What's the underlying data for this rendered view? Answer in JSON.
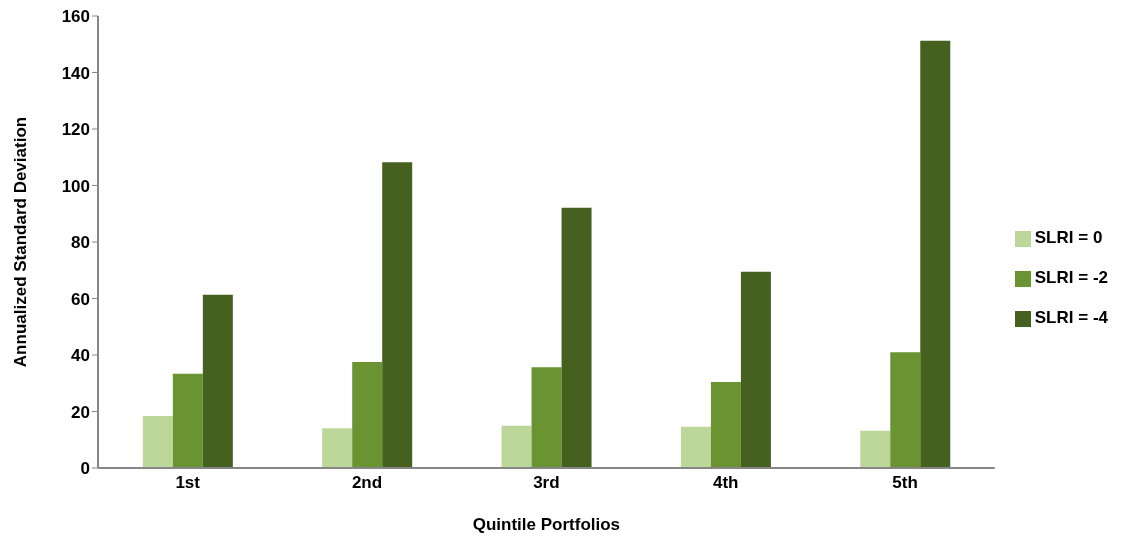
{
  "chart_data": {
    "type": "bar",
    "xlabel": "Quintile Portfolios",
    "ylabel": "Annualized Standard Deviation",
    "categories": [
      "1st",
      "2nd",
      "3rd",
      "4th",
      "5th"
    ],
    "series": [
      {
        "name": "SLRI = 0",
        "color": "#bdd79b",
        "values": [
          18.4,
          14.1,
          15,
          14.6,
          13.2
        ]
      },
      {
        "name": "SLRI = -2",
        "color": "#6a9332",
        "values": [
          33.4,
          37.5,
          35.7,
          30.4,
          41
        ]
      },
      {
        "name": "SLRI = -4",
        "color": "#45601f",
        "values": [
          61.3,
          108.2,
          92.1,
          69.5,
          151.2
        ]
      }
    ],
    "ylim": [
      0,
      160
    ],
    "yticks": [
      0,
      20,
      40,
      60,
      80,
      100,
      120,
      140,
      160
    ],
    "grid": false,
    "legend": "right"
  }
}
